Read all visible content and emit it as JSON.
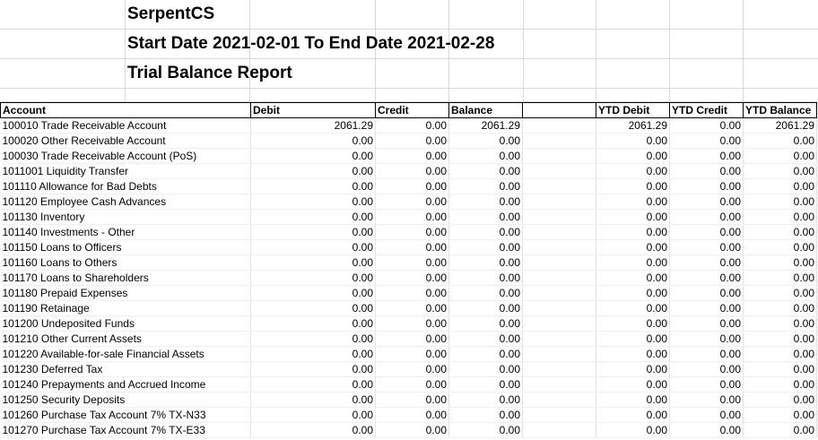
{
  "report": {
    "company": "SerpentCS",
    "date_range": "Start Date 2021-02-01 To End Date 2021-02-28",
    "title": "Trial Balance Report"
  },
  "columns": [
    "Account",
    "Debit",
    "Credit",
    "Balance",
    "",
    "YTD Debit",
    "YTD Credit",
    "YTD Balance"
  ],
  "rows": [
    [
      "100010  Trade Receivable Account",
      "2061.29",
      "0.00",
      "2061.29",
      "",
      "2061.29",
      "0.00",
      "2061.29"
    ],
    [
      "100020  Other Receivable Account",
      "0.00",
      "0.00",
      "0.00",
      "",
      "0.00",
      "0.00",
      "0.00"
    ],
    [
      "100030  Trade Receivable Account (PoS)",
      "0.00",
      "0.00",
      "0.00",
      "",
      "0.00",
      "0.00",
      "0.00"
    ],
    [
      "1011001  Liquidity Transfer",
      "0.00",
      "0.00",
      "0.00",
      "",
      "0.00",
      "0.00",
      "0.00"
    ],
    [
      "101110  Allowance for Bad Debts",
      "0.00",
      "0.00",
      "0.00",
      "",
      "0.00",
      "0.00",
      "0.00"
    ],
    [
      "101120  Employee Cash Advances",
      "0.00",
      "0.00",
      "0.00",
      "",
      "0.00",
      "0.00",
      "0.00"
    ],
    [
      "101130  Inventory",
      "0.00",
      "0.00",
      "0.00",
      "",
      "0.00",
      "0.00",
      "0.00"
    ],
    [
      "101140  Investments - Other",
      "0.00",
      "0.00",
      "0.00",
      "",
      "0.00",
      "0.00",
      "0.00"
    ],
    [
      "101150  Loans to Officers",
      "0.00",
      "0.00",
      "0.00",
      "",
      "0.00",
      "0.00",
      "0.00"
    ],
    [
      "101160  Loans to Others",
      "0.00",
      "0.00",
      "0.00",
      "",
      "0.00",
      "0.00",
      "0.00"
    ],
    [
      "101170  Loans to Shareholders",
      "0.00",
      "0.00",
      "0.00",
      "",
      "0.00",
      "0.00",
      "0.00"
    ],
    [
      "101180  Prepaid Expenses",
      "0.00",
      "0.00",
      "0.00",
      "",
      "0.00",
      "0.00",
      "0.00"
    ],
    [
      "101190  Retainage",
      "0.00",
      "0.00",
      "0.00",
      "",
      "0.00",
      "0.00",
      "0.00"
    ],
    [
      "101200  Undeposited Funds",
      "0.00",
      "0.00",
      "0.00",
      "",
      "0.00",
      "0.00",
      "0.00"
    ],
    [
      "101210  Other Current Assets",
      "0.00",
      "0.00",
      "0.00",
      "",
      "0.00",
      "0.00",
      "0.00"
    ],
    [
      "101220  Available-for-sale Financial Assets",
      "0.00",
      "0.00",
      "0.00",
      "",
      "0.00",
      "0.00",
      "0.00"
    ],
    [
      "101230  Deferred Tax",
      "0.00",
      "0.00",
      "0.00",
      "",
      "0.00",
      "0.00",
      "0.00"
    ],
    [
      "101240  Prepayments and Accrued Income",
      "0.00",
      "0.00",
      "0.00",
      "",
      "0.00",
      "0.00",
      "0.00"
    ],
    [
      "101250  Security Deposits",
      "0.00",
      "0.00",
      "0.00",
      "",
      "0.00",
      "0.00",
      "0.00"
    ],
    [
      "101260  Purchase Tax Account 7% TX-N33",
      "0.00",
      "0.00",
      "0.00",
      "",
      "0.00",
      "0.00",
      "0.00"
    ],
    [
      "101270  Purchase Tax Account 7% TX-E33",
      "0.00",
      "0.00",
      "0.00",
      "",
      "0.00",
      "0.00",
      "0.00"
    ]
  ]
}
